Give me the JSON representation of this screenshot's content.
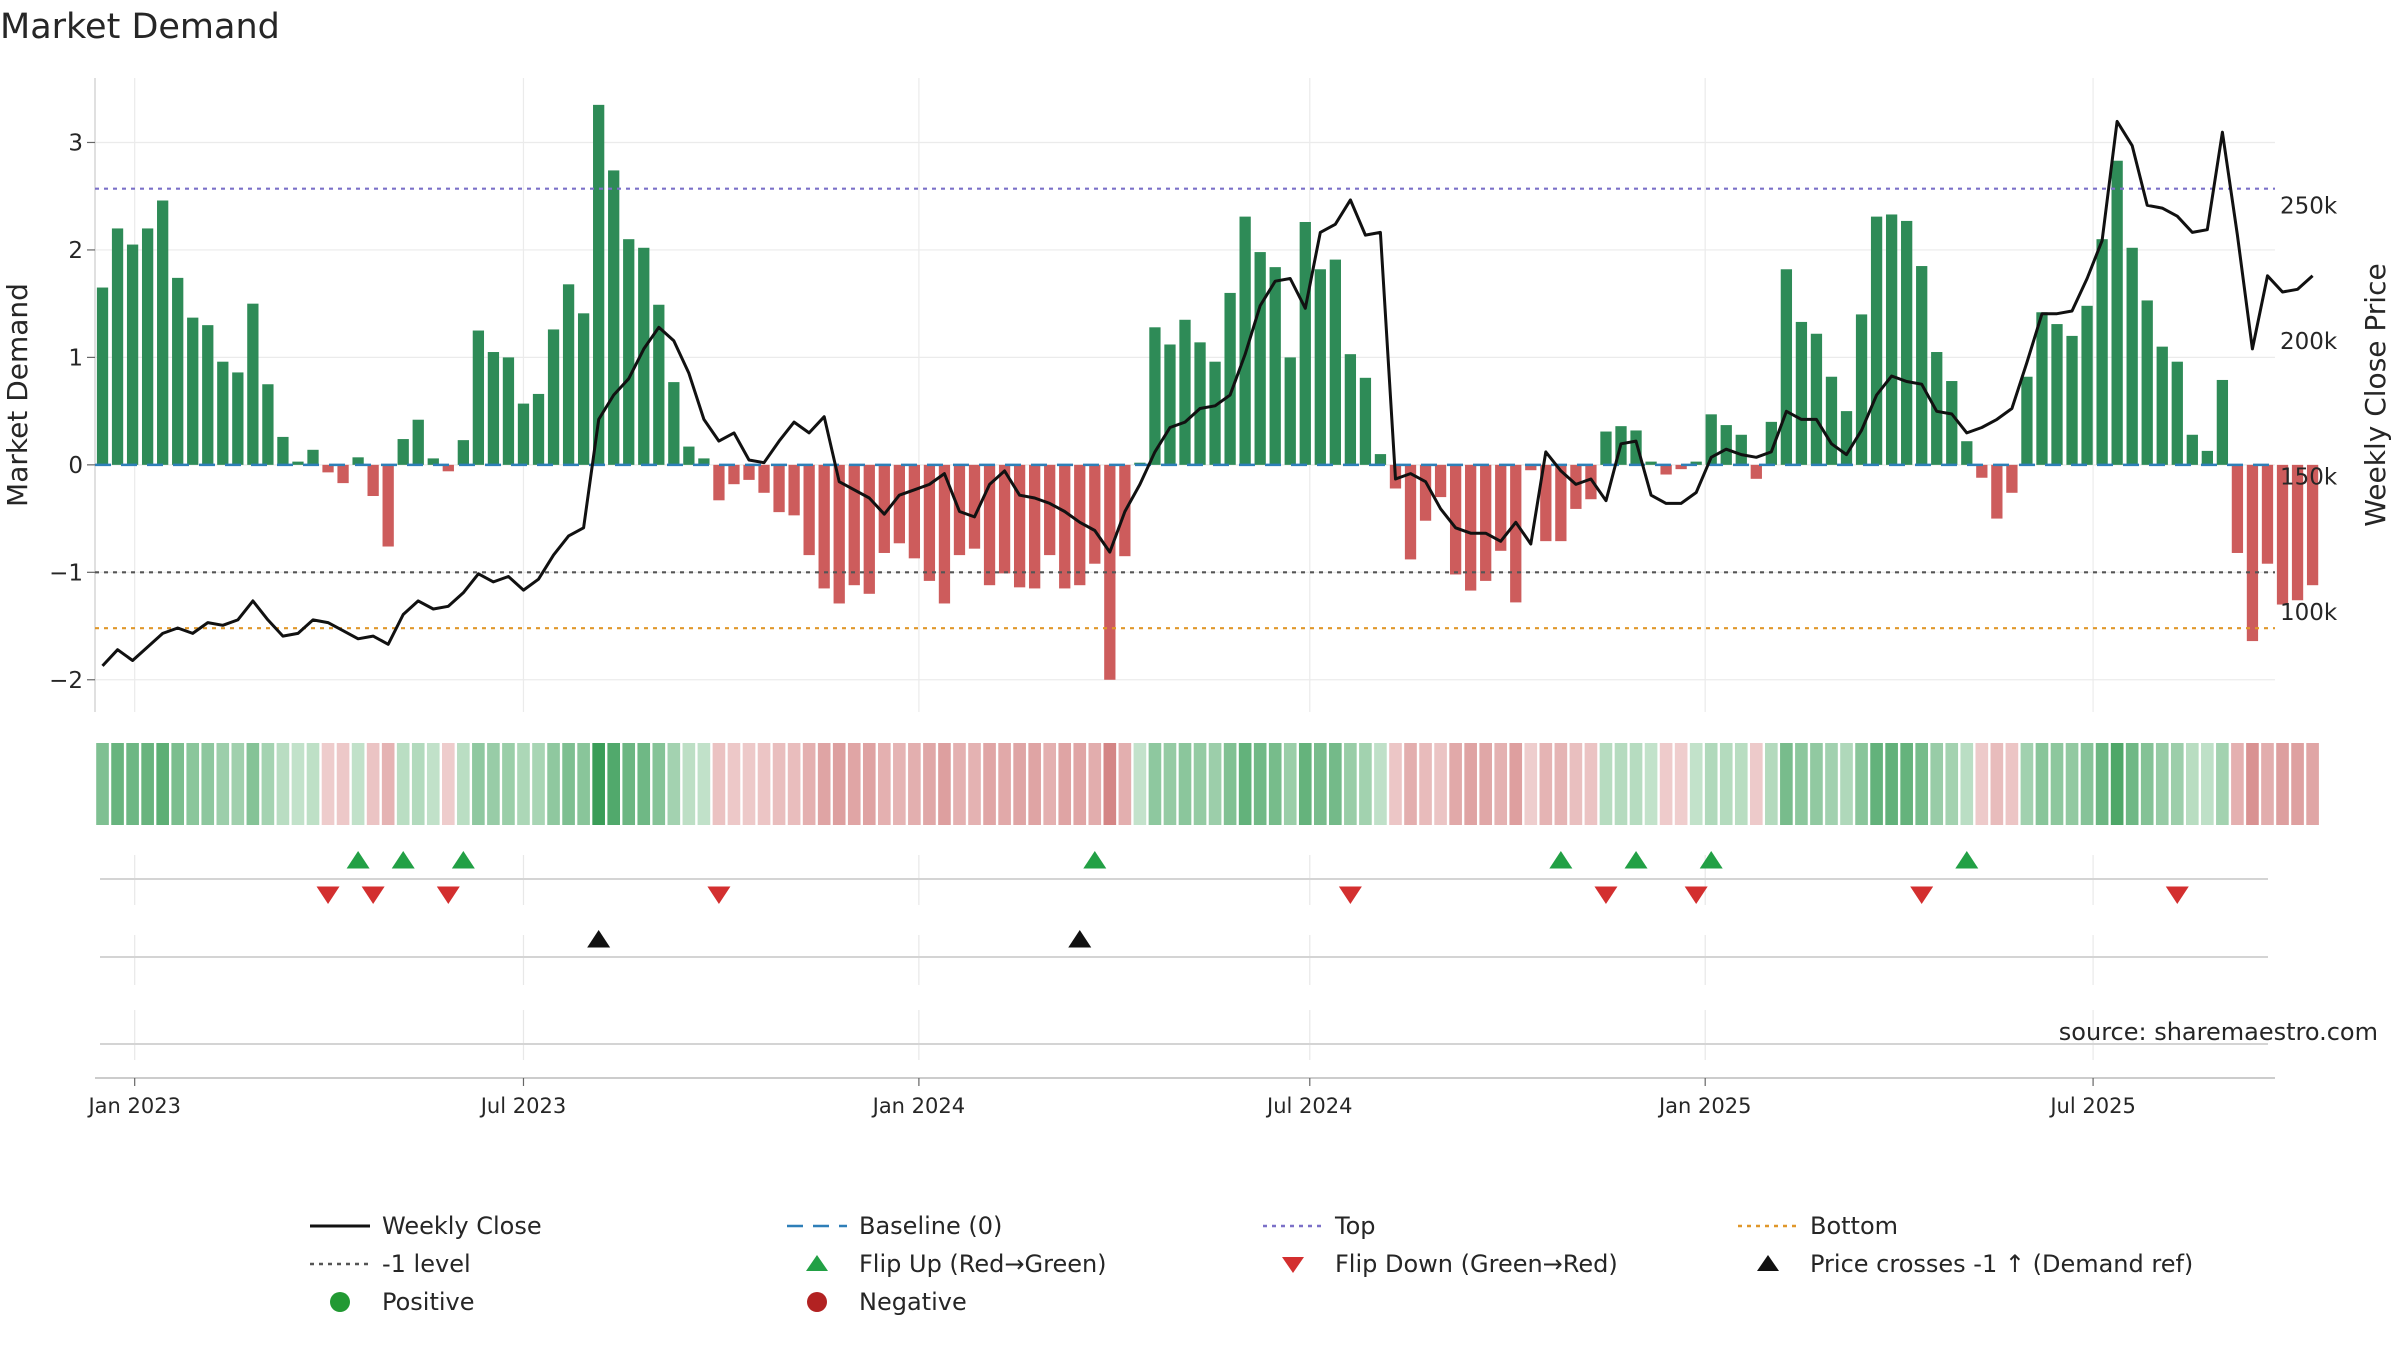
{
  "chart_data": {
    "type": "bar+line",
    "title": "Market Demand",
    "ylabel_left": "Market Demand",
    "ylabel_right": "Weekly Close Price",
    "ylim_left": [
      -2.3,
      3.6
    ],
    "ylim_right": [
      63000,
      297000
    ],
    "yticks_left": [
      {
        "value": 3,
        "label": "3"
      },
      {
        "value": 2,
        "label": "2"
      },
      {
        "value": 1,
        "label": "1"
      },
      {
        "value": 0,
        "label": "0"
      },
      {
        "value": -1,
        "label": "−1"
      },
      {
        "value": -2,
        "label": "−2"
      }
    ],
    "yticks_right": [
      {
        "value": 250000,
        "label": "250k"
      },
      {
        "value": 200000,
        "label": "200k"
      },
      {
        "value": 150000,
        "label": "150k"
      },
      {
        "value": 100000,
        "label": "100k"
      }
    ],
    "x_start": "2022-12-19",
    "x_week_range": [
      -0.5,
      144.5
    ],
    "xticks": [
      {
        "week": 2.14,
        "label": "Jan 2023"
      },
      {
        "week": 28.0,
        "label": "Jul 2023"
      },
      {
        "week": 54.3,
        "label": "Jan 2024"
      },
      {
        "week": 80.3,
        "label": "Jul 2024"
      },
      {
        "week": 106.6,
        "label": "Jan 2025"
      },
      {
        "week": 132.4,
        "label": "Jul 2025"
      }
    ],
    "reference_lines": [
      {
        "name": "Top",
        "value": 2.57,
        "color": "#7b70c8",
        "style": "dotted"
      },
      {
        "name": "Bottom",
        "value": -1.52,
        "color": "#e0972a",
        "style": "dotted"
      },
      {
        "name": "-1 level",
        "value": -1.0,
        "color": "#555555",
        "style": "dotted"
      },
      {
        "name": "Baseline (0)",
        "value": 0.0,
        "color": "#2e7fb8",
        "style": "dashed"
      }
    ],
    "demand": [
      1.65,
      2.2,
      2.05,
      2.2,
      2.46,
      1.74,
      1.37,
      1.3,
      0.96,
      0.86,
      1.5,
      0.75,
      0.26,
      0.03,
      0.14,
      -0.07,
      -0.17,
      0.07,
      -0.29,
      -0.76,
      0.24,
      0.42,
      0.06,
      -0.06,
      0.23,
      1.25,
      1.05,
      1.0,
      0.57,
      0.66,
      1.26,
      1.68,
      1.41,
      3.35,
      2.74,
      2.1,
      2.02,
      1.49,
      0.77,
      0.17,
      0.06,
      -0.33,
      -0.18,
      -0.14,
      -0.26,
      -0.44,
      -0.47,
      -0.84,
      -1.15,
      -1.29,
      -1.12,
      -1.2,
      -0.82,
      -0.73,
      -0.87,
      -1.08,
      -1.29,
      -0.84,
      -0.78,
      -1.12,
      -1.01,
      -1.14,
      -1.15,
      -0.84,
      -1.15,
      -1.12,
      -0.92,
      -2.0,
      -0.85,
      0.02,
      1.28,
      1.12,
      1.35,
      1.14,
      0.96,
      1.6,
      2.31,
      1.98,
      1.84,
      1.0,
      2.26,
      1.82,
      1.91,
      1.03,
      0.81,
      0.1,
      -0.22,
      -0.88,
      -0.52,
      -0.3,
      -1.02,
      -1.17,
      -1.08,
      -0.8,
      -1.28,
      -0.05,
      -0.71,
      -0.71,
      -0.41,
      -0.32,
      0.31,
      0.36,
      0.32,
      0.03,
      -0.09,
      -0.04,
      0.03,
      0.47,
      0.37,
      0.28,
      -0.13,
      0.4,
      1.82,
      1.33,
      1.22,
      0.82,
      0.5,
      1.4,
      2.31,
      2.33,
      2.27,
      1.85,
      1.05,
      0.78,
      0.22,
      -0.12,
      -0.5,
      -0.26,
      0.82,
      1.42,
      1.31,
      1.2,
      1.48,
      2.1,
      2.83,
      2.02,
      1.53,
      1.1,
      0.96,
      0.28,
      0.13,
      0.79,
      -0.82,
      -1.64,
      -0.92,
      -1.3,
      -1.26,
      -1.12
    ],
    "weekly_close": [
      80000,
      86000,
      82000,
      87000,
      92000,
      94000,
      92000,
      96000,
      95000,
      97000,
      104000,
      97000,
      91000,
      92000,
      97000,
      96000,
      93000,
      90000,
      91000,
      88000,
      99000,
      104000,
      101000,
      102000,
      107000,
      114000,
      111000,
      113000,
      108000,
      112000,
      121000,
      128000,
      131000,
      171000,
      180000,
      186000,
      197000,
      205000,
      200000,
      188000,
      171000,
      163000,
      166000,
      156000,
      155000,
      163000,
      170000,
      166000,
      172000,
      148000,
      145000,
      142000,
      136000,
      143000,
      145000,
      147000,
      151000,
      137000,
      135000,
      147000,
      152000,
      143000,
      142000,
      140000,
      137000,
      133000,
      130000,
      122000,
      137000,
      147000,
      159000,
      168000,
      170000,
      175000,
      176000,
      180000,
      195000,
      213000,
      222000,
      223000,
      212000,
      240000,
      243000,
      252000,
      239000,
      240000,
      149000,
      151000,
      148000,
      138000,
      131000,
      129000,
      129000,
      126000,
      133000,
      125000,
      159000,
      152000,
      147000,
      149000,
      141000,
      162000,
      163000,
      143000,
      140000,
      140000,
      144000,
      157000,
      160000,
      158000,
      157000,
      159000,
      174000,
      171000,
      171000,
      162000,
      158000,
      167000,
      180000,
      187000,
      185000,
      184000,
      174000,
      173000,
      166000,
      168000,
      171000,
      175000,
      192000,
      210000,
      210000,
      211000,
      223000,
      237000,
      281000,
      272000,
      250000,
      249000,
      246000,
      240000,
      241000,
      277000,
      239000,
      197000,
      224000,
      218000,
      219000,
      224000
    ],
    "flip_up_weeks": [
      17,
      20,
      24,
      66,
      97,
      102,
      107,
      124
    ],
    "flip_down_weeks": [
      15,
      18,
      23,
      41,
      83,
      100,
      106,
      121,
      138
    ],
    "price_cross_weeks": [
      33,
      65
    ],
    "source_text": "source: sharemaestro.com",
    "legend": [
      {
        "label": "Weekly Close",
        "marker": "solid-line",
        "color": "#111111"
      },
      {
        "label": "Baseline (0)",
        "marker": "dashed-line",
        "color": "#2e7fb8"
      },
      {
        "label": "Top",
        "marker": "dotted-line",
        "color": "#7b70c8"
      },
      {
        "label": "Bottom",
        "marker": "dotted-line",
        "color": "#e0972a"
      },
      {
        "label": "-1 level",
        "marker": "dotted-line",
        "color": "#555555"
      },
      {
        "label": "Flip Up (Red→Green)",
        "marker": "up-triangle",
        "color": "#22a045"
      },
      {
        "label": "Flip Down (Green→Red)",
        "marker": "down-triangle",
        "color": "#d32f2f"
      },
      {
        "label": "Price crosses -1 ↑ (Demand ref)",
        "marker": "up-triangle",
        "color": "#111111"
      },
      {
        "label": "Positive",
        "marker": "circle",
        "color": "#229933"
      },
      {
        "label": "Negative",
        "marker": "circle",
        "color": "#b22222"
      }
    ],
    "colors": {
      "positive_bar": "#2e8b57",
      "negative_bar": "#cd5c5c",
      "close_line": "#111111",
      "flip_up": "#22a045",
      "flip_down": "#d32f2f",
      "price_cross": "#111111"
    }
  }
}
